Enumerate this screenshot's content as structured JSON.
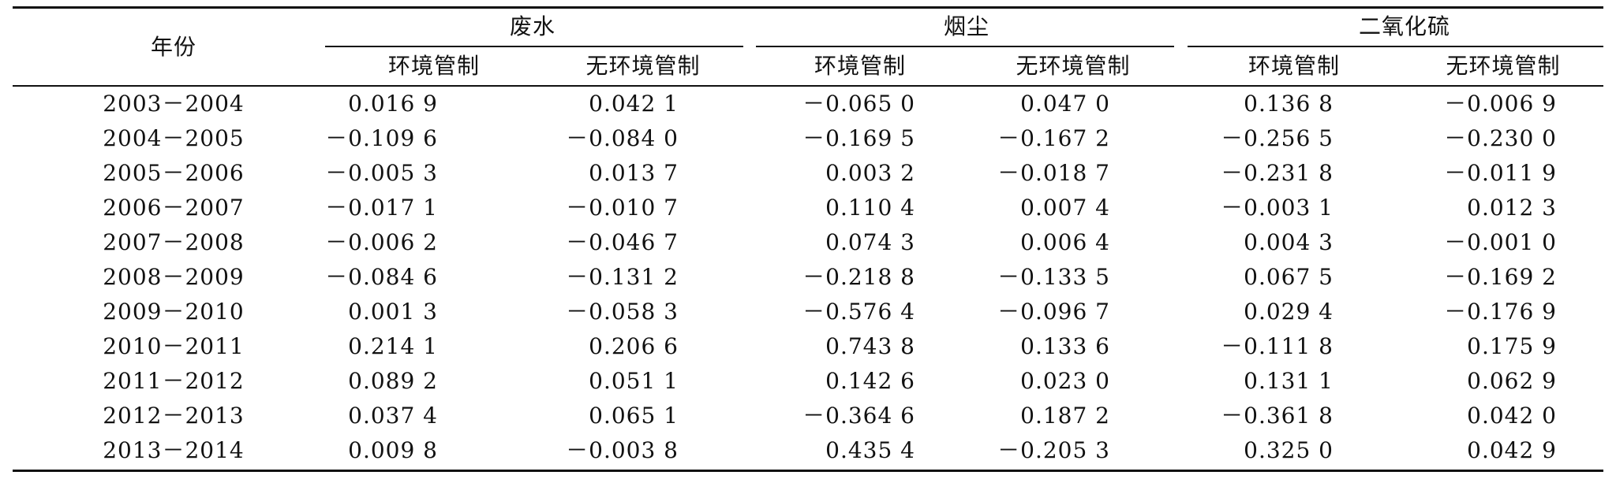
{
  "headers": {
    "year": "年份",
    "groups": [
      "废水",
      "烟尘",
      "二氧化硫"
    ],
    "sub": [
      "环境管制",
      "无环境管制"
    ]
  },
  "rows": [
    {
      "year": "2003－2004",
      "values": [
        "0.016 9",
        "0.042 1",
        "－0.065 0",
        "0.047 0",
        "0.136 8",
        "－0.006 9"
      ]
    },
    {
      "year": "2004－2005",
      "values": [
        "－0.109 6",
        "－0.084 0",
        "－0.169 5",
        "－0.167 2",
        "－0.256 5",
        "－0.230 0"
      ]
    },
    {
      "year": "2005－2006",
      "values": [
        "－0.005 3",
        "0.013 7",
        "0.003 2",
        "－0.018 7",
        "－0.231 8",
        "－0.011 9"
      ]
    },
    {
      "year": "2006－2007",
      "values": [
        "－0.017 1",
        "－0.010 7",
        "0.110 4",
        "0.007 4",
        "－0.003 1",
        "0.012 3"
      ]
    },
    {
      "year": "2007－2008",
      "values": [
        "－0.006 2",
        "－0.046 7",
        "0.074 3",
        "0.006 4",
        "0.004 3",
        "－0.001 0"
      ]
    },
    {
      "year": "2008－2009",
      "values": [
        "－0.084 6",
        "－0.131 2",
        "－0.218 8",
        "－0.133 5",
        "0.067 5",
        "－0.169 2"
      ]
    },
    {
      "year": "2009－2010",
      "values": [
        "0.001 3",
        "－0.058 3",
        "－0.576 4",
        "－0.096 7",
        "0.029 4",
        "－0.176 9"
      ]
    },
    {
      "year": "2010－2011",
      "values": [
        "0.214 1",
        "0.206 6",
        "0.743 8",
        "0.133 6",
        "－0.111 8",
        "0.175 9"
      ]
    },
    {
      "year": "2011－2012",
      "values": [
        "0.089 2",
        "0.051 1",
        "0.142 6",
        "0.023 0",
        "0.131 1",
        "0.062 9"
      ]
    },
    {
      "year": "2012－2013",
      "values": [
        "0.037 4",
        "0.065 1",
        "－0.364 6",
        "0.187 2",
        "－0.361 8",
        "0.042 0"
      ]
    },
    {
      "year": "2013－2014",
      "values": [
        "0.009 8",
        "－0.003 8",
        "0.435 4",
        "－0.205 3",
        "0.325 0",
        "0.042 9"
      ]
    }
  ]
}
